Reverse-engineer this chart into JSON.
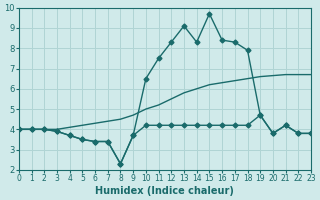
{
  "xlabel": "Humidex (Indice chaleur)",
  "bg_color": "#d0eaea",
  "grid_color": "#b0d4d4",
  "line_color": "#1a6b6b",
  "xlim": [
    0,
    23
  ],
  "ylim": [
    2,
    10
  ],
  "xticks": [
    0,
    1,
    2,
    3,
    4,
    5,
    6,
    7,
    8,
    9,
    10,
    11,
    12,
    13,
    14,
    15,
    16,
    17,
    18,
    19,
    20,
    21,
    22,
    23
  ],
  "yticks": [
    2,
    3,
    4,
    5,
    6,
    7,
    8,
    9,
    10
  ],
  "curve1_x": [
    0,
    1,
    2,
    3,
    4,
    5,
    6,
    7,
    8,
    9,
    10,
    11,
    12,
    13,
    14,
    15,
    16,
    17,
    18,
    19,
    20,
    21,
    22,
    23
  ],
  "curve1_y": [
    4.0,
    4.0,
    4.0,
    3.9,
    3.7,
    3.5,
    3.4,
    3.4,
    2.3,
    3.7,
    4.2,
    4.2,
    4.2,
    4.2,
    4.2,
    4.2,
    4.2,
    4.2,
    4.2,
    4.7,
    3.8,
    4.2,
    3.8,
    3.8
  ],
  "curve2_x": [
    0,
    1,
    2,
    3,
    4,
    5,
    6,
    7,
    8,
    9,
    10,
    11,
    12,
    13,
    14,
    15,
    16,
    17,
    18,
    19,
    20,
    21,
    22,
    23
  ],
  "curve2_y": [
    4.0,
    4.0,
    4.0,
    4.0,
    4.1,
    4.2,
    4.3,
    4.4,
    4.5,
    4.7,
    5.0,
    5.2,
    5.5,
    5.8,
    6.0,
    6.2,
    6.3,
    6.4,
    6.5,
    6.6,
    6.65,
    6.7,
    6.7,
    6.7
  ],
  "curve3_x": [
    0,
    1,
    2,
    3,
    4,
    5,
    6,
    7,
    8,
    9,
    10,
    11,
    12,
    13,
    14,
    15,
    16,
    17,
    18,
    19,
    20,
    21,
    22,
    23
  ],
  "curve3_y": [
    4.0,
    4.0,
    4.0,
    3.9,
    3.7,
    3.5,
    3.4,
    3.4,
    2.3,
    3.7,
    6.5,
    7.5,
    8.3,
    9.1,
    8.3,
    9.7,
    8.4,
    8.3,
    7.9,
    4.7,
    3.8,
    4.2,
    3.8,
    3.8
  ]
}
